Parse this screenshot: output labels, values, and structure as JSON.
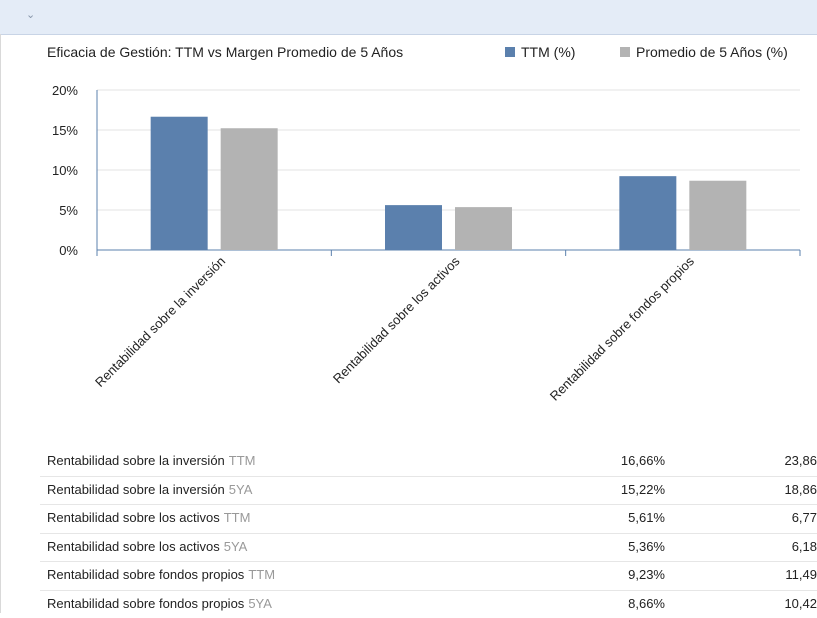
{
  "chart_data": {
    "type": "bar",
    "title": "Eficacia de Gestión: TTM vs Margen Promedio de 5 Años",
    "categories": [
      "Rentabilidad sobre la inversión",
      "Rentabilidad sobre los activos",
      "Rentabilidad sobre fondos propios"
    ],
    "series": [
      {
        "name": "TTM (%)",
        "color": "#5b80ad",
        "values": [
          16.66,
          5.61,
          9.23
        ]
      },
      {
        "name": "Promedio de 5 Años (%)",
        "color": "#b3b3b3",
        "values": [
          15.22,
          5.36,
          8.66
        ]
      }
    ],
    "yticks": [
      "0%",
      "5%",
      "10%",
      "15%",
      "20%"
    ],
    "ylim": [
      0,
      20
    ],
    "grid": true,
    "legend": "top-right"
  },
  "table": {
    "rows": [
      {
        "label": "Rentabilidad sobre la inversión",
        "suffix": "TTM",
        "v1": "16,66%",
        "v2": "23,86"
      },
      {
        "label": "Rentabilidad sobre la inversión",
        "suffix": "5YA",
        "v1": "15,22%",
        "v2": "18,86"
      },
      {
        "label": "Rentabilidad sobre los activos",
        "suffix": "TTM",
        "v1": "5,61%",
        "v2": "6,77"
      },
      {
        "label": "Rentabilidad sobre los activos",
        "suffix": "5YA",
        "v1": "5,36%",
        "v2": "6,18"
      },
      {
        "label": "Rentabilidad sobre fondos propios",
        "suffix": "TTM",
        "v1": "9,23%",
        "v2": "11,49"
      },
      {
        "label": "Rentabilidad sobre fondos propios",
        "suffix": "5YA",
        "v1": "8,66%",
        "v2": "10,42"
      }
    ]
  }
}
